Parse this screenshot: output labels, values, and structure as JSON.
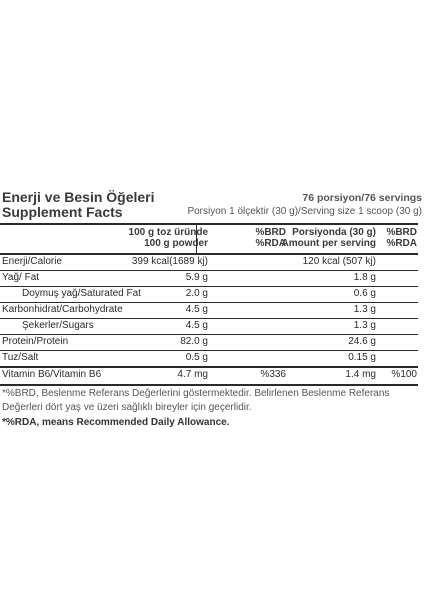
{
  "header": {
    "title_tr": "Enerji ve Besin Öğeleri",
    "title_en": "Supplement Facts",
    "portions": "76 porsiyon/76 servings",
    "serving_size": "Porsiyon 1 ölçektir (30 g)/Serving size 1 scoop (30 g)"
  },
  "columns": {
    "per100_tr": "100 g toz üründe",
    "per100_en": "100 g powder",
    "brd1_tr": "%BRD",
    "brd1_en": "%RDA",
    "serving_tr": "Porsiyonda (30 g)",
    "serving_en": "Amount per serving",
    "brd2_tr": "%BRD",
    "brd2_en": "%RDA"
  },
  "rows": [
    {
      "label": "Enerji/Calorie",
      "per100": "399 kcal(1689 kj)",
      "brd1": "",
      "serving": "120 kcal (507 kj)",
      "brd2": ""
    },
    {
      "label": "Yağ/ Fat",
      "per100": "5.9 g",
      "brd1": "",
      "serving": "1.8 g",
      "brd2": ""
    },
    {
      "label": "Doymuş yağ/Saturated Fat",
      "per100": "2.0 g",
      "brd1": "",
      "serving": "0.6 g",
      "brd2": ""
    },
    {
      "label": "Karbonhidrat/Carbohydrate",
      "per100": "4.5 g",
      "brd1": "",
      "serving": "1.3 g",
      "brd2": ""
    },
    {
      "label": "Şekerler/Sugars",
      "per100": "4.5 g",
      "brd1": "",
      "serving": "1.3 g",
      "brd2": ""
    },
    {
      "label": "Protein/Protein",
      "per100": "82.0 g",
      "brd1": "",
      "serving": "24.6 g",
      "brd2": ""
    },
    {
      "label": "Tuz/Salt",
      "per100": "0.5 g",
      "brd1": "",
      "serving": "0.15 g",
      "brd2": ""
    },
    {
      "label": "Vitamin B6/Vitamin B6",
      "per100": "4.7 mg",
      "brd1": "%336",
      "serving": "1.4 mg",
      "brd2": "%100"
    }
  ],
  "footnotes": {
    "brd_note": "*%BRD, Beslenme Referans Değerlerini göstermektedir. Belirlenen Beslenme Referans Değerleri dört yaş ve üzeri sağlıklı bireyler için geçerlidir.",
    "rda_note": "*%RDA, means Recommended Daily Allowance."
  }
}
